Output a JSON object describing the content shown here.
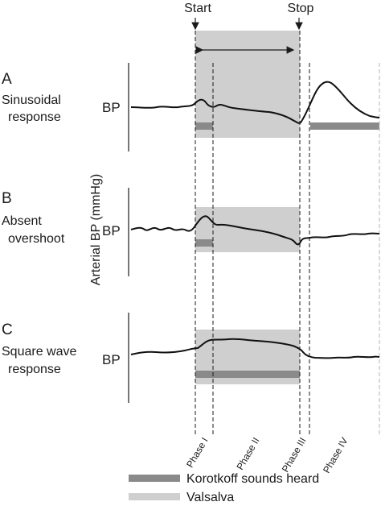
{
  "markers": {
    "start": "Start",
    "stop": "Stop"
  },
  "y_axis_label": "Arterial BP (mmHg)",
  "panels": [
    {
      "letter": "A",
      "title_line1": "Sinusoidal",
      "title_line2": "response",
      "bp_label": "BP"
    },
    {
      "letter": "B",
      "title_line1": "Absent",
      "title_line2": "overshoot",
      "bp_label": "BP"
    },
    {
      "letter": "C",
      "title_line1": "Square wave",
      "title_line2": "response",
      "bp_label": "BP"
    }
  ],
  "phases": [
    "Phase I",
    "Phase II",
    "Phase III",
    "Phase IV"
  ],
  "legend": {
    "korotkoff": "Korotkoff sounds heard",
    "valsalva": "Valsalva"
  },
  "colors": {
    "valsalva": "#cfcfcf",
    "korotkoff": "#8a8a8a",
    "trace": "#111111",
    "line": "#1a1a1a"
  }
}
